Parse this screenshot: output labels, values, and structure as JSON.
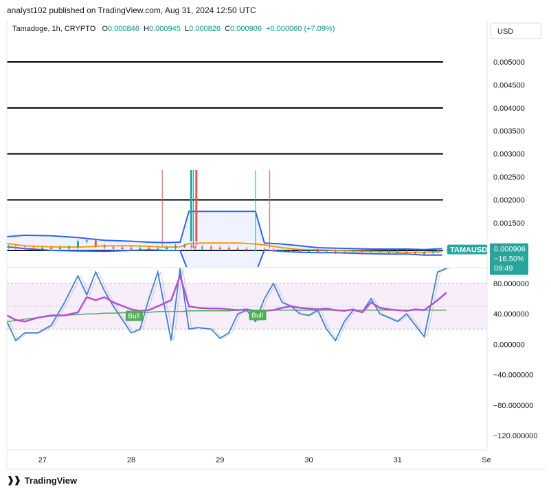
{
  "publisher": "analyst102 published on TradingView.com, Aug 31, 2024 12:50 UTC",
  "legend": {
    "symbol": "Tamadoge, 1h, CRYPTO",
    "open_label": "O",
    "open": "0.000846",
    "high_label": "H",
    "high": "0.000945",
    "low_label": "L",
    "low": "0.000826",
    "close_label": "C",
    "close": "0.000906",
    "change": "+0.000060 (+7.09%)"
  },
  "currency": "USD",
  "price_tag": {
    "ticker": "TAMAUSD",
    "price": "0.000906",
    "change": "−16.50%",
    "countdown": "09:49"
  },
  "footer": {
    "brand": "TradingView"
  },
  "colors": {
    "bull": "#26a69a",
    "bear": "#ef5350",
    "bb": "#2962ff",
    "bb_mid": "#ff9800",
    "rsi": "#b44fd6",
    "stoch": "#3d7fd9",
    "ma": "#4caf50"
  },
  "chart_data": [
    {
      "type": "line",
      "title": "Tamadoge, 1h, CRYPTO",
      "ylim": [
        0.0008,
        0.0055
      ],
      "y_ticks": [
        "0.005000",
        "0.004500",
        "0.004000",
        "0.003500",
        "0.003000",
        "0.002500",
        "0.002000",
        "0.001500"
      ],
      "y_tick_values": [
        0.005,
        0.0045,
        0.004,
        0.0035,
        0.003,
        0.0025,
        0.002,
        0.0015
      ],
      "x_ticks": [
        "27",
        "28",
        "29",
        "30",
        "31",
        "Se"
      ],
      "x_tick_positions": [
        0.5,
        1.5,
        2.5,
        3.5,
        4.5,
        5.5
      ],
      "xlim": [
        0.1,
        5.5
      ],
      "horizontal_levels": [
        0.005,
        0.004,
        0.003,
        0.002,
        0.0009
      ],
      "series": [
        {
          "x": [
            0.1,
            0.3,
            0.6,
            0.9,
            1.2,
            1.5,
            1.7,
            1.9,
            2.05,
            2.15,
            2.3,
            2.5,
            2.7,
            2.9,
            3.0,
            3.2,
            3.4,
            3.6,
            3.8,
            4.0,
            4.2,
            4.4,
            4.6,
            4.8,
            5.0
          ],
          "upper": [
            0.0012,
            0.00123,
            0.00122,
            0.00118,
            0.00112,
            0.0011,
            0.00108,
            0.00107,
            0.00108,
            0.00175,
            0.00175,
            0.00175,
            0.00175,
            0.00175,
            0.00106,
            0.00104,
            0.001,
            0.00096,
            0.00095,
            0.00094,
            0.00093,
            0.00093,
            0.00093,
            0.00092,
            0.00094
          ],
          "middle": [
            0.00105,
            0.001,
            0.00098,
            0.00097,
            0.001,
            0.001,
            0.00099,
            0.00097,
            0.00098,
            0.00105,
            0.00106,
            0.00106,
            0.00106,
            0.00104,
            0.00102,
            0.00096,
            0.00092,
            0.00091,
            0.0009,
            0.00089,
            0.00088,
            0.00087,
            0.00086,
            0.00086,
            0.00088
          ],
          "lower": [
            0.00098,
            0.00094,
            0.0009,
            0.00089,
            0.00088,
            0.0009,
            0.00091,
            0.0009,
            0.0009,
            0.0004,
            0.0004,
            0.0004,
            0.0004,
            0.0004,
            0.00091,
            0.00088,
            0.00086,
            0.00085,
            0.00085,
            0.00084,
            0.00083,
            0.00082,
            0.00082,
            0.0008,
            0.0008
          ]
        }
      ],
      "candles_x": [
        0.12,
        0.2,
        0.3,
        0.4,
        0.5,
        0.6,
        0.7,
        0.8,
        0.9,
        1.0,
        1.1,
        1.2,
        1.3,
        1.4,
        1.5,
        1.6,
        1.7,
        1.8,
        1.9,
        2.0,
        2.1,
        2.18,
        2.22,
        2.3,
        2.4,
        2.5,
        2.6,
        2.7,
        2.8,
        2.9,
        3.0,
        3.1,
        3.2,
        3.3,
        3.4,
        3.5,
        3.6,
        3.7,
        3.8,
        3.9,
        4.0,
        4.1,
        4.2,
        4.3,
        4.4,
        4.5,
        4.6,
        4.7,
        4.8,
        4.9,
        4.95
      ],
      "candles_close": [
        0.00098,
        0.00096,
        0.00095,
        0.00094,
        0.00096,
        0.00095,
        0.00096,
        0.00097,
        0.0011,
        0.00112,
        0.001,
        0.00097,
        0.00096,
        0.00095,
        0.00094,
        0.00095,
        0.00094,
        0.00094,
        0.00096,
        0.001,
        0.001,
        0.00098,
        0.00096,
        0.00097,
        0.00096,
        0.00095,
        0.00094,
        0.00093,
        0.00092,
        0.00092,
        0.00091,
        0.0009,
        0.0009,
        0.0009,
        0.00089,
        0.00089,
        0.00088,
        0.00088,
        0.00087,
        0.00086,
        0.00086,
        0.00085,
        0.00085,
        0.00085,
        0.00086,
        0.00087,
        0.00086,
        0.00085,
        0.00085,
        0.00088,
        0.00091
      ],
      "spikes": [
        {
          "x": 1.85,
          "high": 0.00265,
          "low": 0.001,
          "color": "bear"
        },
        {
          "x": 2.2,
          "high": 0.00265,
          "low": 0.00095,
          "color": "bull"
        },
        {
          "x": 2.24,
          "high": 0.00265,
          "low": 0.001,
          "color": "bear"
        },
        {
          "x": 2.9,
          "high": 0.00265,
          "low": 0.00095,
          "color": "bull"
        },
        {
          "x": 3.06,
          "high": 0.00265,
          "low": 0.00095,
          "color": "bear"
        }
      ]
    },
    {
      "type": "line",
      "y_ticks": [
        "80.000000",
        "40.000000",
        "0.000000",
        "−40.000000",
        "−80.000000",
        "−120.000000"
      ],
      "y_tick_values": [
        80,
        40,
        0,
        -40,
        -80,
        -120
      ],
      "ylim": [
        -140,
        105
      ],
      "band": [
        20,
        80
      ],
      "labels": [
        "Bull",
        "Bull"
      ],
      "label_positions_x": [
        1.53,
        2.92
      ],
      "label_positions_y": [
        37,
        38
      ],
      "series": [
        {
          "name": "",
          "x": [
            0.1,
            0.2,
            0.3,
            0.45,
            0.6,
            0.75,
            0.9,
            1.0,
            1.1,
            1.2,
            1.3,
            1.5,
            1.6,
            1.7,
            1.8,
            1.95,
            2.05,
            2.15,
            2.25,
            2.4,
            2.5,
            2.6,
            2.7,
            2.8,
            2.9,
            3.0,
            3.1,
            3.2,
            3.3,
            3.4,
            3.5,
            3.6,
            3.7,
            3.8,
            3.9,
            4.0,
            4.1,
            4.2,
            4.3,
            4.4,
            4.5,
            4.6,
            4.7,
            4.8,
            4.95,
            5.05
          ],
          "rsi": [
            38,
            32,
            30,
            35,
            38,
            38,
            42,
            62,
            58,
            62,
            55,
            46,
            44,
            45,
            50,
            58,
            90,
            50,
            48,
            47,
            47,
            46,
            45,
            46,
            44,
            44,
            45,
            48,
            50,
            48,
            47,
            46,
            47,
            45,
            44,
            46,
            42,
            55,
            48,
            46,
            45,
            44,
            46,
            45,
            58,
            68
          ],
          "stoch": [
            30,
            5,
            15,
            15,
            25,
            55,
            90,
            65,
            95,
            70,
            50,
            15,
            20,
            60,
            95,
            5,
            100,
            20,
            22,
            20,
            8,
            15,
            40,
            45,
            30,
            60,
            80,
            55,
            50,
            40,
            38,
            45,
            20,
            5,
            30,
            45,
            42,
            60,
            40,
            35,
            30,
            40,
            25,
            10,
            95,
            100
          ],
          "ma": [
            30,
            31,
            33,
            35,
            37,
            38,
            39,
            40,
            40,
            41,
            41,
            42,
            42,
            42,
            43,
            43,
            43,
            44,
            44,
            44,
            44,
            44,
            45,
            45,
            45,
            45,
            45,
            45,
            45,
            45,
            45,
            45,
            45,
            45,
            45,
            45,
            45,
            45,
            45,
            45,
            45,
            45,
            45,
            45,
            45,
            45
          ]
        }
      ]
    }
  ]
}
